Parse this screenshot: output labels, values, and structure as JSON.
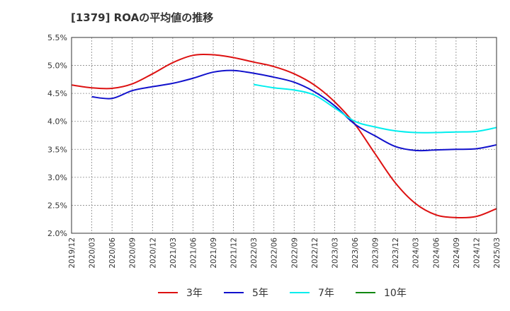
{
  "chart_data": {
    "type": "line",
    "title": "[1379]  ROAの平均値の推移",
    "xlabel": "",
    "ylabel": "",
    "ylim": [
      2.0,
      5.5
    ],
    "yticks": [
      "2.0%",
      "2.5%",
      "3.0%",
      "3.5%",
      "4.0%",
      "4.5%",
      "5.0%",
      "5.5%"
    ],
    "xticks": [
      "2019/12",
      "2020/03",
      "2020/06",
      "2020/09",
      "2020/12",
      "2021/03",
      "2021/06",
      "2021/09",
      "2021/12",
      "2022/03",
      "2022/06",
      "2022/09",
      "2022/12",
      "2023/03",
      "2023/06",
      "2023/09",
      "2023/12",
      "2024/03",
      "2024/06",
      "2024/09",
      "2024/12",
      "2025/03"
    ],
    "grid": true,
    "legend_position": "bottom",
    "series": [
      {
        "name": "3年",
        "color": "#dd1111",
        "values": [
          4.65,
          4.6,
          4.59,
          4.67,
          4.85,
          5.05,
          5.18,
          5.19,
          5.14,
          5.06,
          4.98,
          4.85,
          4.65,
          4.35,
          3.95,
          3.42,
          2.9,
          2.53,
          2.33,
          2.28,
          2.3,
          2.44
        ]
      },
      {
        "name": "5年",
        "color": "#1111cc",
        "values": [
          null,
          4.44,
          4.41,
          4.55,
          4.62,
          4.68,
          4.77,
          4.88,
          4.91,
          4.86,
          4.79,
          4.7,
          4.53,
          4.28,
          3.95,
          3.74,
          3.55,
          3.48,
          3.49,
          3.5,
          3.51,
          3.58
        ]
      },
      {
        "name": "7年",
        "color": "#00eeee",
        "values": [
          null,
          null,
          null,
          null,
          null,
          null,
          null,
          null,
          null,
          4.66,
          4.6,
          4.56,
          4.47,
          4.24,
          4.0,
          3.9,
          3.83,
          3.8,
          3.8,
          3.81,
          3.82,
          3.89
        ]
      },
      {
        "name": "10年",
        "color": "#118811",
        "values": []
      }
    ]
  }
}
